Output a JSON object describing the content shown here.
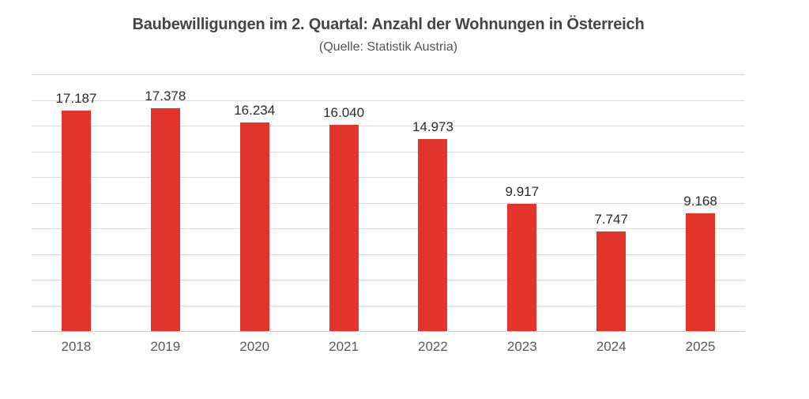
{
  "title": "Baubewilligungen im 2. Quartal: Anzahl der Wohnungen in Österreich",
  "subtitle": "(Quelle: Statistik Austria)",
  "colors": {
    "bar": "#e2342b",
    "gridline": "#d9d9d9",
    "axis_line": "#cccccc",
    "title_text": "#454545",
    "subtitle_text": "#555555",
    "value_label_text": "#2b2b2b",
    "tick_label_text": "#595959",
    "background": "#ffffff"
  },
  "chart_data": {
    "type": "bar",
    "title": "Baubewilligungen im 2. Quartal: Anzahl der Wohnungen in Österreich",
    "subtitle": "(Quelle: Statistik Austria)",
    "categories": [
      "2018",
      "2019",
      "2020",
      "2021",
      "2022",
      "2023",
      "2024",
      "2025"
    ],
    "values": [
      17187,
      17378,
      16234,
      16040,
      14973,
      9917,
      7747,
      9168
    ],
    "value_labels": [
      "17.187",
      "17.378",
      "16.234",
      "16.040",
      "14.973",
      "9.917",
      "7.747",
      "9.168"
    ],
    "xlabel": "",
    "ylabel": "",
    "ylim": [
      0,
      20000
    ],
    "gridline_interval": 2000,
    "grid": true,
    "legend": false,
    "y_axis_tick_labels_visible": false,
    "bar_color": "#e2342b"
  }
}
